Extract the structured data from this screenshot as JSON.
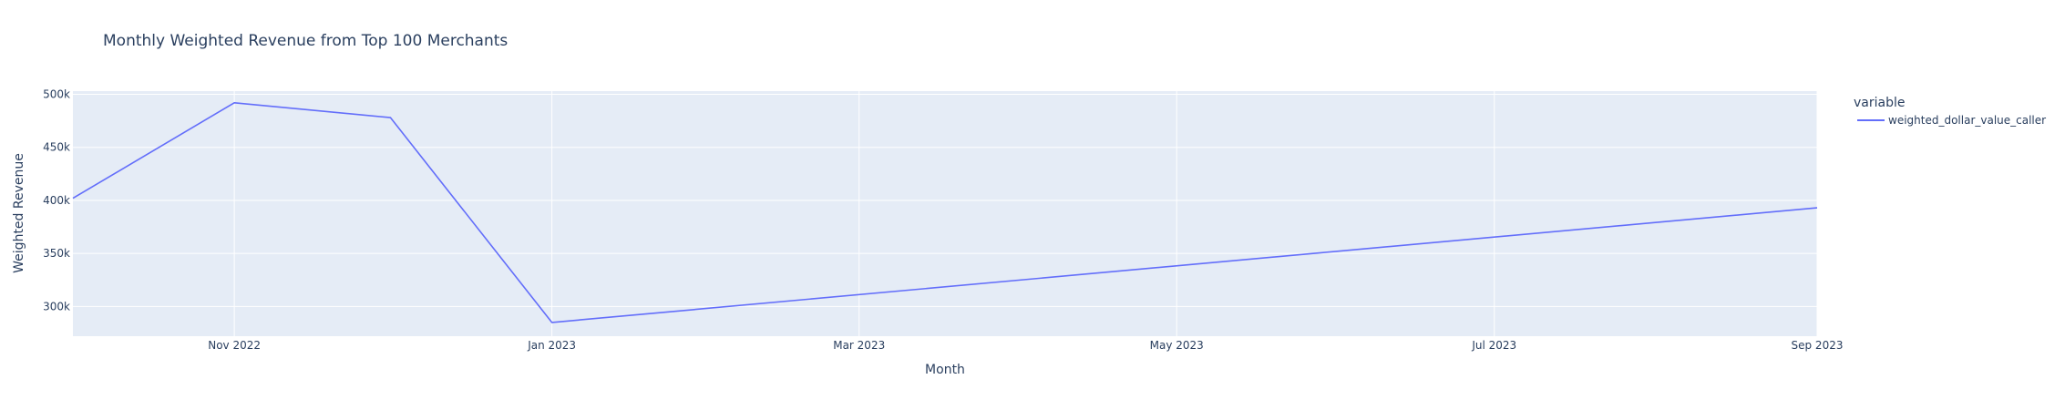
{
  "chart_data": {
    "type": "line",
    "title": "Monthly Weighted Revenue from Top 100 Merchants",
    "xlabel": "Month",
    "ylabel": "Weighted Revenue",
    "x": [
      "2022-10-01",
      "2022-11-01",
      "2022-12-01",
      "2023-01-01",
      "2023-09-01"
    ],
    "series": [
      {
        "name": "weighted_dollar_value_caller",
        "color": "#636efa",
        "values": [
          402000,
          492000,
          478000,
          285000,
          393000
        ]
      }
    ],
    "ylim": [
      272000,
      503000
    ],
    "xlim": [
      "2022-10-01",
      "2023-09-01"
    ],
    "yticks": [
      300000,
      350000,
      400000,
      450000,
      500000
    ],
    "ytick_labels": [
      "300k",
      "350k",
      "400k",
      "450k",
      "500k"
    ],
    "xticks": [
      "2022-11-01",
      "2023-01-01",
      "2023-03-01",
      "2023-05-01",
      "2023-07-01",
      "2023-09-01"
    ],
    "xtick_labels": [
      "Nov 2022",
      "Jan 2023",
      "Mar 2023",
      "May 2023",
      "Jul 2023",
      "Sep 2023"
    ],
    "legend_title": "variable",
    "legend_position": "right",
    "grid": true,
    "plot_bg": "#e5ecf6",
    "grid_color": "#ffffff"
  }
}
